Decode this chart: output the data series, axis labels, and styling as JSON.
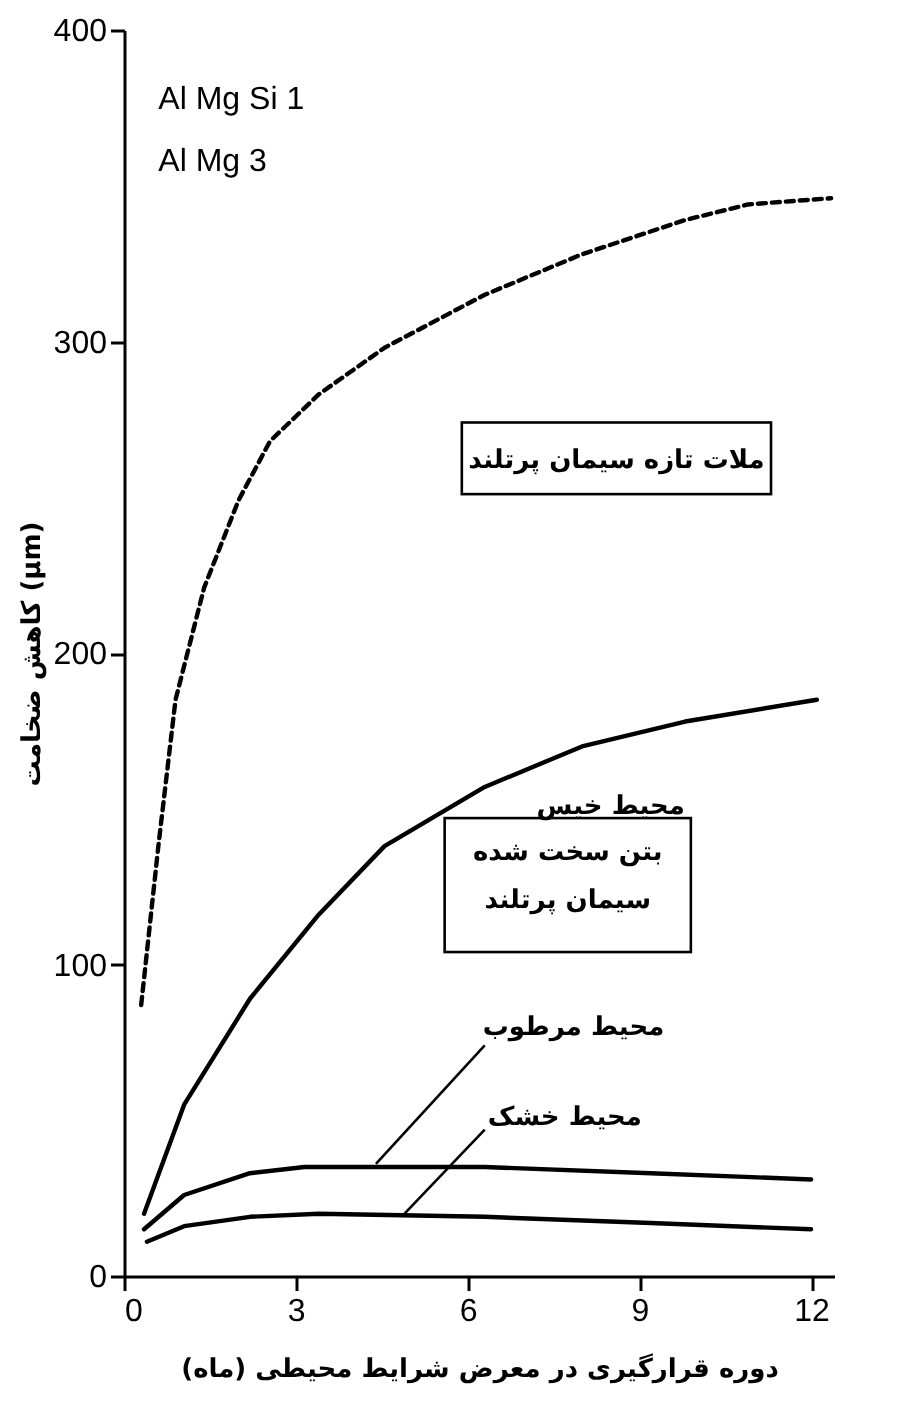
{
  "chart_data": {
    "type": "line",
    "xlabel": "دوره قرارگیری در معرض شرایط محیطی (ماه)",
    "ylabel": "کاهش ضخامت (μm)",
    "xlim": [
      0,
      12.4
    ],
    "ylim": [
      0,
      400
    ],
    "xticks": [
      0,
      3,
      6,
      9,
      12
    ],
    "yticks": [
      0,
      100,
      200,
      300,
      400
    ],
    "annotations": [
      "Al Mg Si 1",
      "Al Mg 3",
      "ملات تازه سیمان پرتلند",
      "بتن سخت شده\nسیمان پرتلند"
    ],
    "series": [
      {
        "color": "#000000",
        "line_style": "dashed",
        "x": [
          0.3,
          0.6,
          0.9,
          1.4,
          2.0,
          2.55,
          3.4,
          4.55,
          6.3,
          8.0,
          9.8,
          10.9,
          12.35
        ],
        "values": [
          87,
          138,
          185,
          221,
          249,
          268,
          283,
          298,
          315,
          328,
          339,
          344,
          346
        ]
      },
      {
        "name": "محیط خیس",
        "color": "#000000",
        "line_style": "solid",
        "x": [
          0.35,
          1.05,
          2.2,
          3.4,
          4.55,
          6.3,
          8.0,
          9.8,
          12.1
        ],
        "values": [
          20,
          55,
          89,
          116,
          138,
          157,
          170,
          178,
          185
        ]
      },
      {
        "name": "محیط مرطوب",
        "color": "#000000",
        "line_style": "solid",
        "x": [
          0.35,
          1.05,
          2.2,
          3.15,
          6.3,
          9.2,
          12
        ],
        "values": [
          15,
          26,
          33,
          35,
          35,
          33,
          31
        ]
      },
      {
        "name": "محیط خشک",
        "color": "#000000",
        "line_style": "solid",
        "x": [
          0.4,
          1.05,
          2.2,
          3.4,
          6.3,
          9.2,
          12
        ],
        "values": [
          11,
          16,
          19,
          20,
          19,
          17,
          15
        ]
      }
    ]
  }
}
